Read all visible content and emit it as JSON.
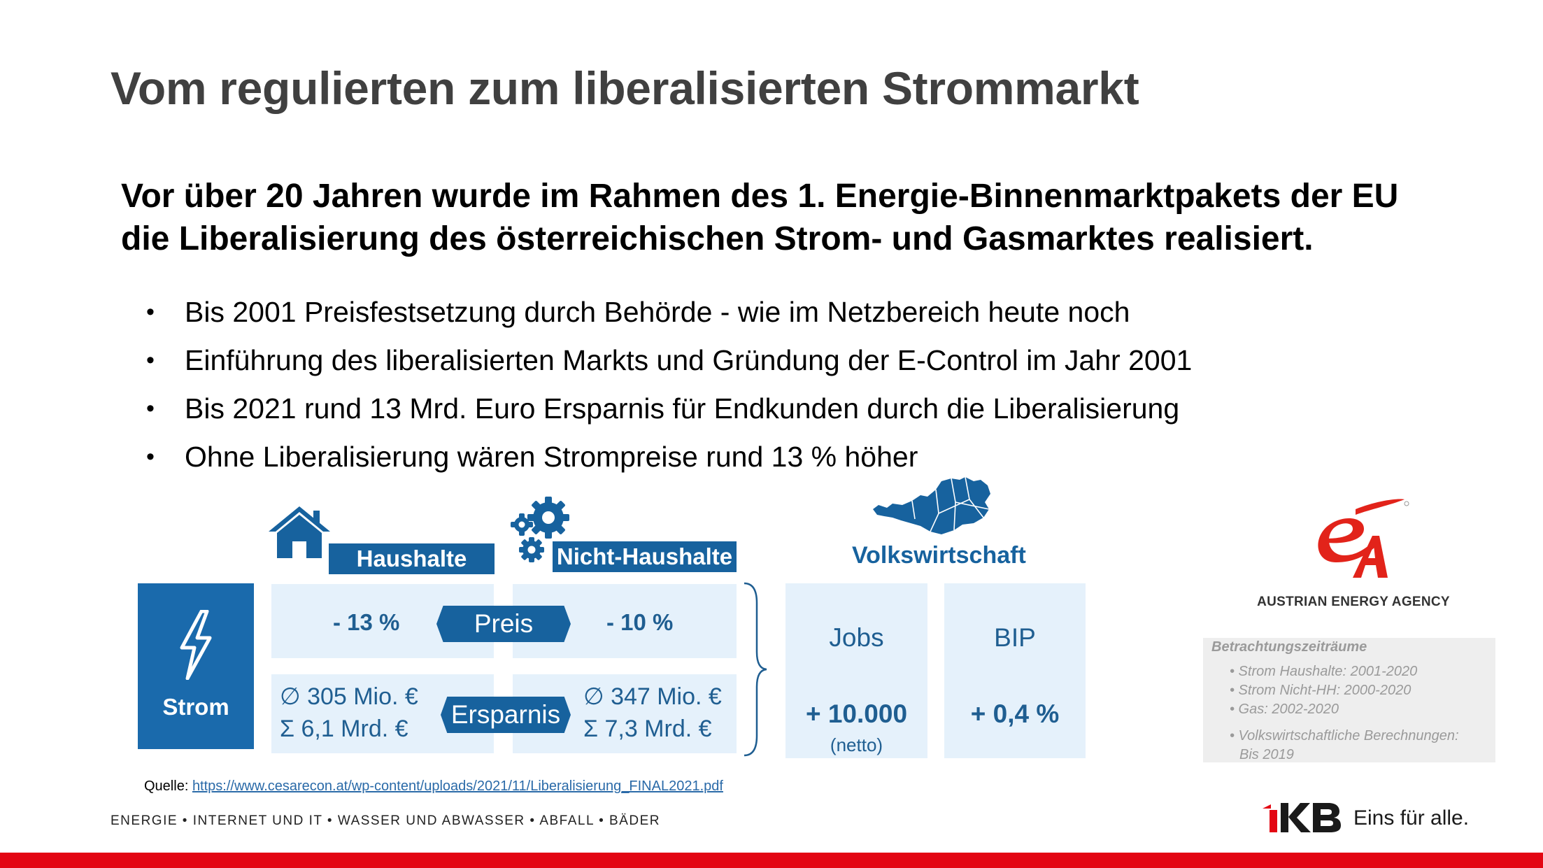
{
  "slide": {
    "title": "Vom regulierten zum liberalisierten Strommarkt",
    "intro": [
      "Vor über 20 Jahren wurde im Rahmen des 1. Energie-Binnenmarktpakets der EU",
      "die Liberalisierung des österreichischen Strom- und Gasmarktes realisiert."
    ],
    "bullets": [
      "Bis 2001 Preisfestsetzung durch Behörde  - wie im Netzbereich heute noch",
      "Einführung des liberalisierten Markts und Gründung der E-Control im Jahr 2001",
      "Bis 2021 rund 13 Mrd. Euro Ersparnis für Endkunden durch die Liberalisierung",
      "Ohne Liberalisierung wären Strompreise rund 13 % höher"
    ],
    "bullet_glyph": "•"
  },
  "infographic": {
    "strom_label": "Strom",
    "haushalte": {
      "label": "Haushalte",
      "price_change": "- 13 %",
      "savings_avg": "∅ 305 Mio. €",
      "savings_sum": "Σ  6,1 Mrd. €"
    },
    "nicht_haushalte": {
      "label": "Nicht-Haushalte",
      "price_change": "- 10 %",
      "savings_avg": "∅ 347 Mio. €",
      "savings_sum": "Σ  7,3 Mrd. €"
    },
    "preis_label": "Preis",
    "ersparnis_label": "Ersparnis",
    "volkswirtschaft": {
      "label": "Volkswirtschaft",
      "jobs_label": "Jobs",
      "jobs_value": "+ 10.000",
      "jobs_note": "(netto)",
      "bip_label": "BIP",
      "bip_value": "+ 0,4 %"
    },
    "colors": {
      "dark_blue": "#17629e",
      "light_blue": "#e5f1fb",
      "strom_blue": "#1a6aac"
    }
  },
  "agency": {
    "name": "AUSTRIAN ENERGY AGENCY",
    "periods_heading": "Betrachtungszeiträume",
    "periods": [
      "• Strom Haushalte: 2001-2020",
      "• Strom Nicht-HH: 2000-2020",
      "• Gas: 2002-2020",
      "• Volkswirtschaftliche Berechnungen:",
      "Bis 2019"
    ]
  },
  "source": {
    "label": "Quelle: ",
    "url": "https://www.cesarecon.at/wp-content/uploads/2021/11/Liberalisierung_FINAL2021.pdf"
  },
  "footer": {
    "divisions": "ENERGIE • INTERNET UND IT • WASSER UND ABWASSER • ABFALL • BÄDER",
    "slogan": "Eins für alle.",
    "brand_color": "#e30613"
  }
}
